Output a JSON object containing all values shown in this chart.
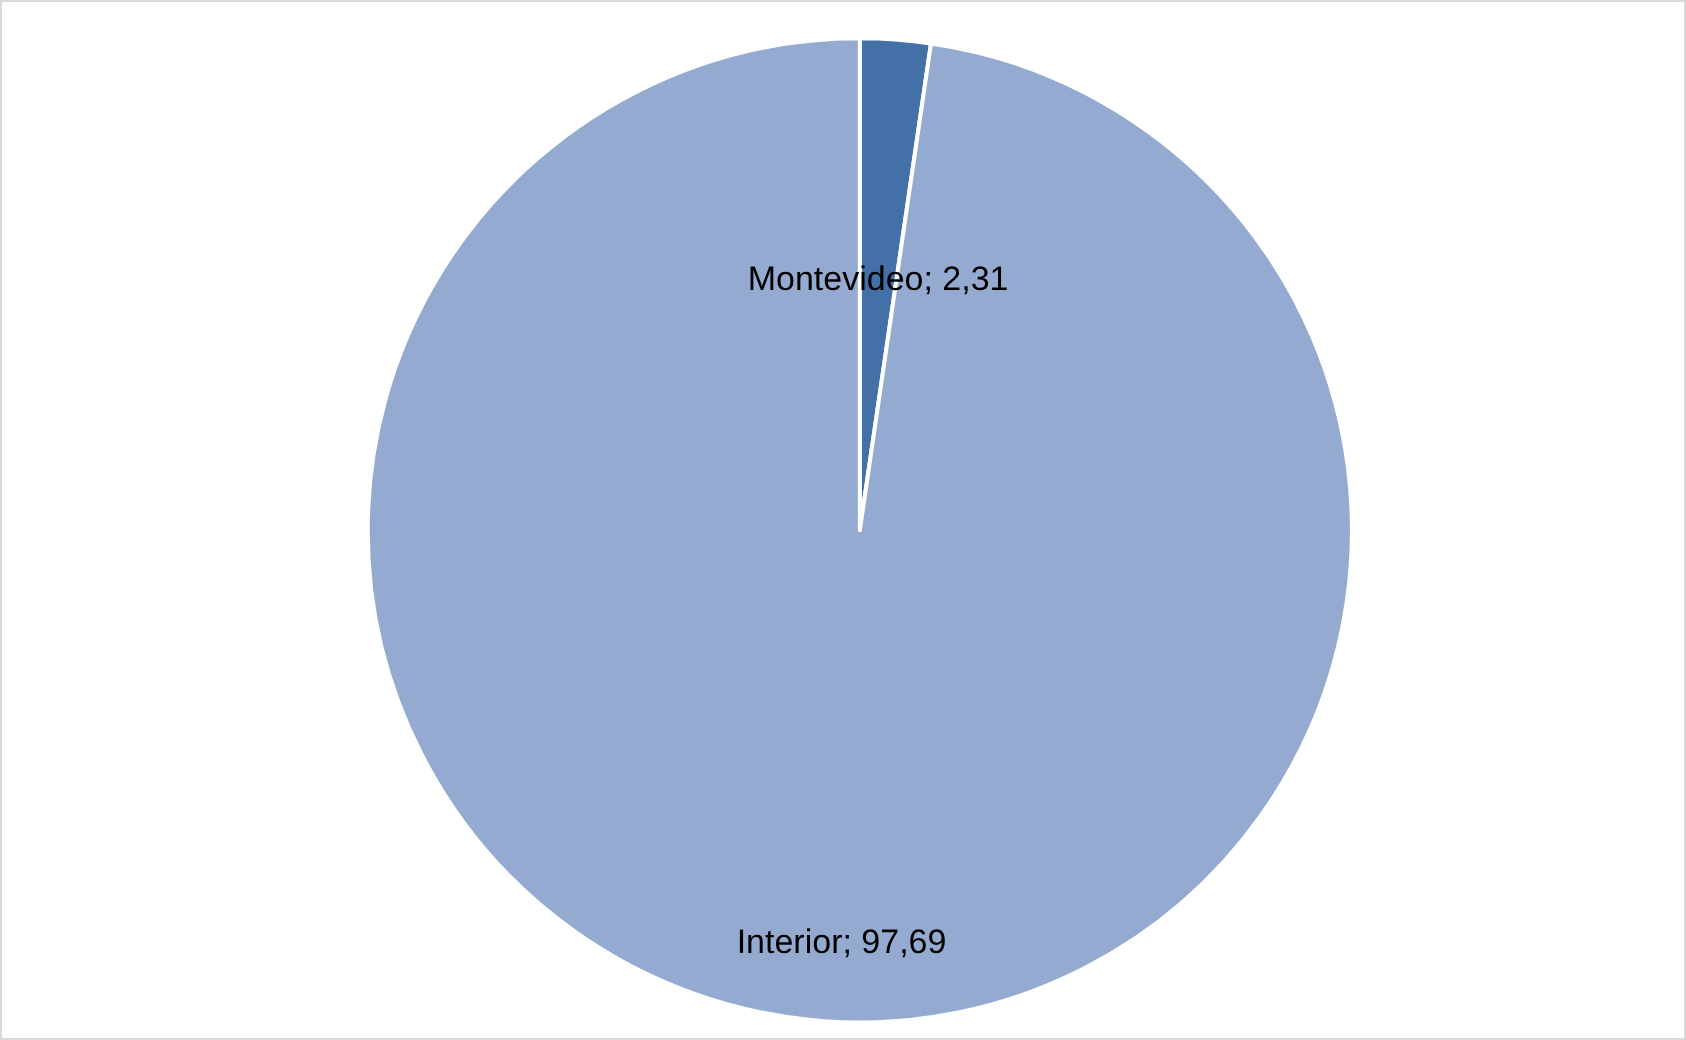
{
  "chart_data": {
    "type": "pie",
    "categories": [
      "Montevideo",
      "Interior"
    ],
    "values": [
      2.31,
      97.69
    ],
    "value_labels": [
      "2,31",
      "97,69"
    ],
    "colors": [
      "#4470a8",
      "#95aad0"
    ],
    "legend": false
  }
}
